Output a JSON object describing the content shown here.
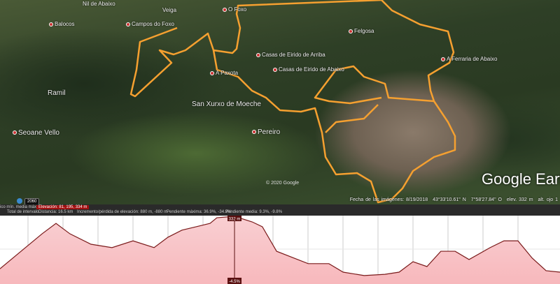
{
  "map": {
    "places": [
      {
        "name": "Nil de Abaixo",
        "big": false
      },
      {
        "name": "Veiga",
        "big": false
      },
      {
        "name": "O Foxo",
        "big": false
      },
      {
        "name": "Balocos",
        "big": false
      },
      {
        "name": "Campos do Foxo",
        "big": false
      },
      {
        "name": "Felgosa",
        "big": false
      },
      {
        "name": "Casas de Eirido de Arriba",
        "big": false
      },
      {
        "name": "Casas de Eirido de Abaixo",
        "big": false
      },
      {
        "name": "A Paxota",
        "big": false
      },
      {
        "name": "A Ferraria de Abaixo",
        "big": false
      },
      {
        "name": "Ramil",
        "big": false
      },
      {
        "name": "San Xurxo de Moeche",
        "big": false
      },
      {
        "name": "Seoane Vello",
        "big": true
      },
      {
        "name": "Pereiro",
        "big": false
      }
    ],
    "track_color": "#f5a030",
    "copyright": "© 2020 Google",
    "brand": "Google Earth",
    "badge": "2060",
    "status": {
      "imagery_date": "Fecha de las imágenes: 8/19/2018",
      "lat": "43°33'10.61\" N",
      "lon": "7°58'27.84\" O",
      "elev": "elev.  332 m",
      "eye_alt": "alt. ojo  1"
    }
  },
  "infobar": {
    "graph_labels": "ico   mín.  media  máx.",
    "elevation": "Elevación: 81, 195, 334 m",
    "range_label": "Total de intervalo",
    "distance": "Distancia: 16.5 km",
    "gain_loss": "Incremento/pérdida de elevación: 880 m, -880 m",
    "max_slope": "Pendiente máxima: 36.9%, -34.3%",
    "avg_slope": "Pendiente media: 9.3%, -9.8%"
  },
  "chart_data": {
    "type": "area",
    "xlabel": "",
    "ylabel": "",
    "x_unit": "km",
    "y_unit": "m",
    "xlim": [
      0,
      16.5
    ],
    "ylim": [
      81,
      334
    ],
    "grid": true,
    "fill_color": "#f7b8bc",
    "line_color": "#7a1a1a",
    "distance_km": [
      0,
      0.62,
      1.24,
      1.65,
      2.06,
      2.68,
      3.3,
      3.92,
      4.54,
      4.95,
      5.36,
      5.78,
      6.19,
      6.39,
      6.91,
      7.43,
      7.73,
      8.15,
      8.66,
      9.08,
      9.69,
      10.11,
      10.73,
      11.34,
      11.76,
      12.17,
      12.58,
      12.99,
      13.41,
      13.82,
      14.44,
      14.85,
      15.26,
      15.68,
      16.09,
      16.5
    ],
    "elevation_m": [
      118,
      190,
      262,
      305,
      262,
      219,
      205,
      233,
      205,
      248,
      277,
      291,
      305,
      328,
      334,
      311,
      291,
      190,
      162,
      139,
      139,
      104,
      90,
      95,
      104,
      147,
      127,
      190,
      190,
      156,
      205,
      233,
      233,
      162,
      110,
      104
    ],
    "cursor": {
      "distance_km": 6.91,
      "elevation_label": "332 m",
      "slope_label": "-4.5%"
    }
  }
}
